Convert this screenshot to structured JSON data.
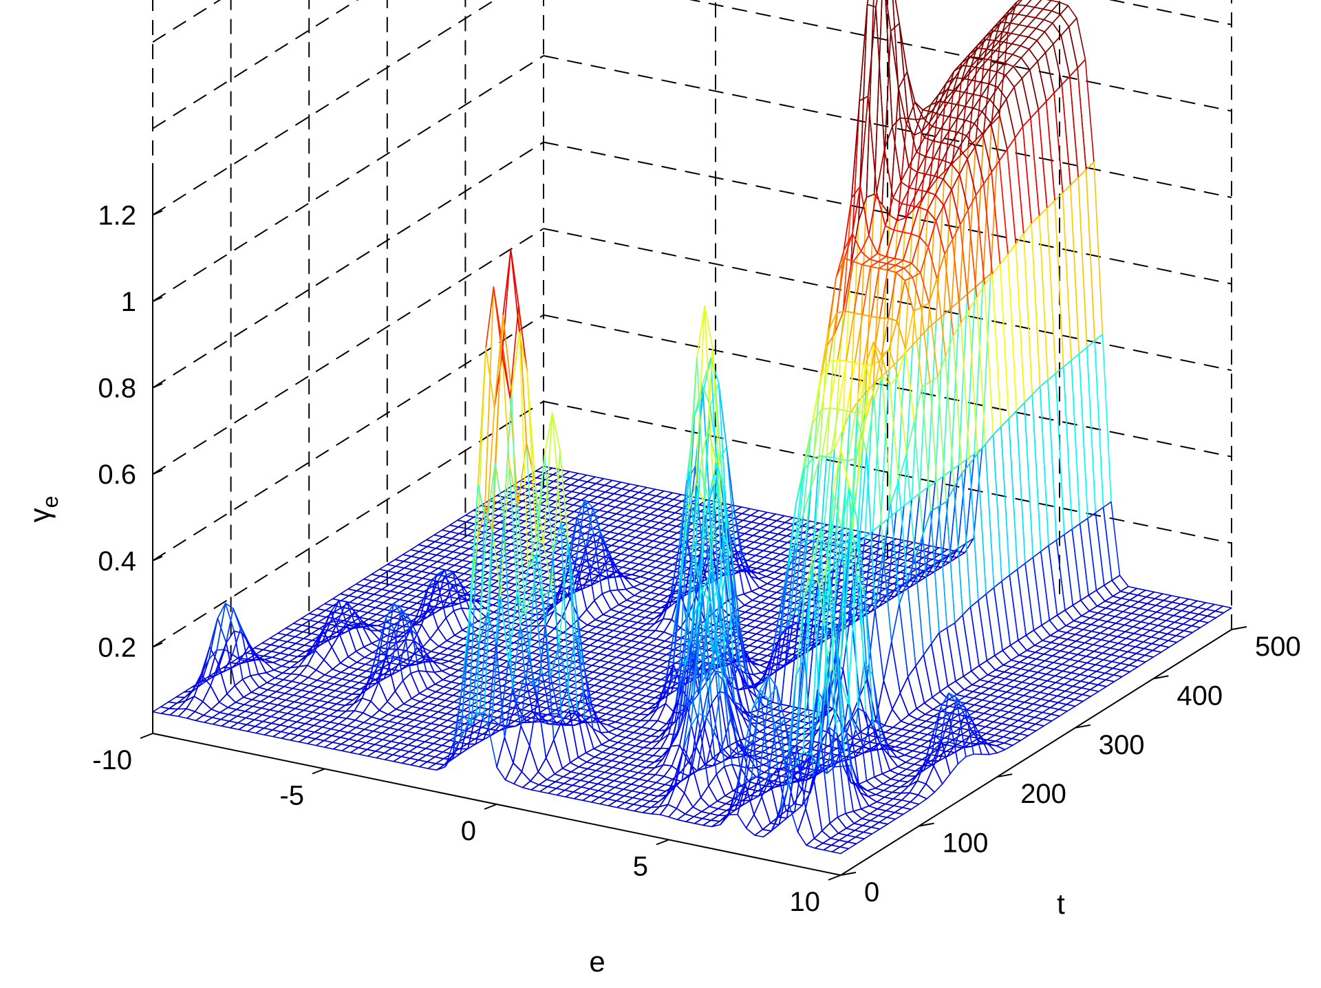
{
  "chart_data": {
    "type": "surface-mesh",
    "xlabel": "e",
    "ylabel": "t",
    "zlabel": "γ",
    "zlabel_subscript": "e",
    "xlim": [
      -10,
      10
    ],
    "ylim": [
      0,
      500
    ],
    "zlim": [
      0,
      1.3
    ],
    "xticks": [
      -10,
      -5,
      0,
      5,
      10
    ],
    "yticks": [
      0,
      100,
      200,
      300,
      400,
      500
    ],
    "zticks": [
      0.2,
      0.4,
      0.6,
      0.8,
      1,
      1.2
    ],
    "xtick_labels": [
      "-10",
      "-5",
      "0",
      "5",
      "10"
    ],
    "ytick_labels": [
      "0",
      "100",
      "200",
      "300",
      "400",
      "500"
    ],
    "ztick_labels": [
      "0.2",
      "0.4",
      "0.6",
      "0.8",
      "1",
      "1.2"
    ],
    "grid": true,
    "colormap": "jet",
    "baseline_level": 0.05,
    "peaks": [
      {
        "e": -9.2,
        "t": 60,
        "height": 0.2
      },
      {
        "e": -8.0,
        "t": 150,
        "height": 0.12
      },
      {
        "e": -6.6,
        "t": 220,
        "height": 0.15
      },
      {
        "e": -5.4,
        "t": 110,
        "height": 0.22
      },
      {
        "e": -4.2,
        "t": 300,
        "height": 0.25
      },
      {
        "e": -1.6,
        "t": 340,
        "height": 0.63
      },
      {
        "e": -1.0,
        "t": 40,
        "height": 1.05
      },
      {
        "e": -0.4,
        "t": 40,
        "height": 1.2
      },
      {
        "e": 0.3,
        "t": 60,
        "height": 0.8
      },
      {
        "e": 1.5,
        "t": 200,
        "height": 0.9
      },
      {
        "e": 2.6,
        "t": 160,
        "height": 0.75
      },
      {
        "e": 3.6,
        "t": 330,
        "height": 0.65
      },
      {
        "e": 3.4,
        "t": 120,
        "height": 0.45
      },
      {
        "e": 4.8,
        "t": 60,
        "height": 0.4
      },
      {
        "e": 5.6,
        "t": 220,
        "height": 0.55
      },
      {
        "e": 6.9,
        "t": 40,
        "height": 0.35
      },
      {
        "e": 7.6,
        "t": 110,
        "height": 0.85
      },
      {
        "e": 8.4,
        "t": 40,
        "height": 0.75
      },
      {
        "e": 9.6,
        "t": 160,
        "height": 0.2
      }
    ],
    "ridge": {
      "e_center": 4.6,
      "e_width": 1.7,
      "t_start": 240,
      "heights_by_t": [
        [
          240,
          0.55
        ],
        [
          280,
          0.95
        ],
        [
          300,
          0.95
        ],
        [
          320,
          1.05
        ],
        [
          360,
          1.15
        ],
        [
          420,
          1.25
        ],
        [
          500,
          1.32
        ]
      ]
    }
  }
}
